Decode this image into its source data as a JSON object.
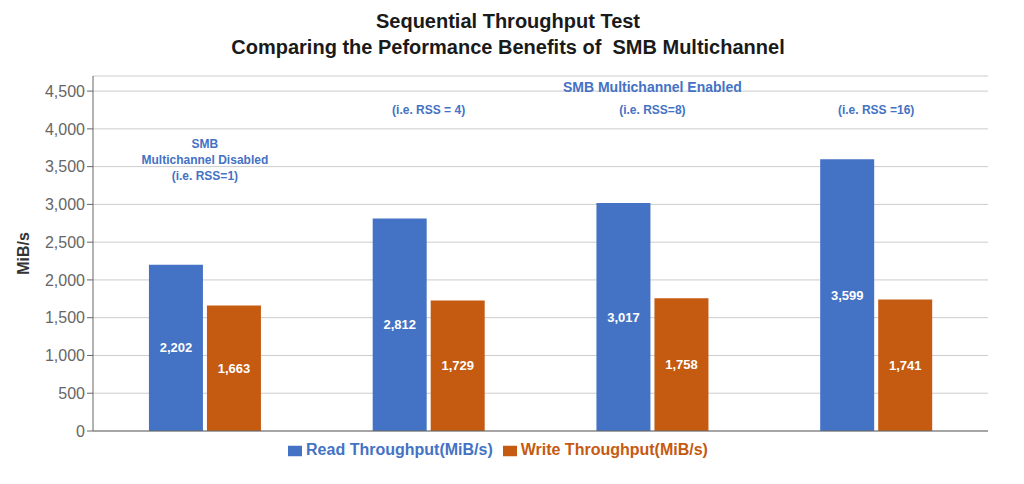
{
  "chart_data": {
    "type": "bar",
    "title": "Sequential Throughput Test",
    "subtitle": "Comparing the Peformance Benefits of  SMB Multichannel",
    "categories": [
      null,
      null,
      null,
      null
    ],
    "series": [
      {
        "name": "Read Throughput(MiB/s)",
        "color": "#4472C4",
        "values": [
          2202,
          2812,
          3017,
          3599
        ],
        "value_labels": [
          "2,202",
          "2,812",
          "3,017",
          "3,599"
        ]
      },
      {
        "name": "Write Throughput(MiB/s)",
        "color": "#C55A11",
        "values": [
          1663,
          1729,
          1758,
          1741
        ],
        "value_labels": [
          "1,663",
          "1,729",
          "1,758",
          "1,741"
        ]
      }
    ],
    "ylabel": "MiB/s",
    "ylim": [
      0,
      4700
    ],
    "yticks": [
      0,
      500,
      {
        "value": 1000,
        "label": "1,000"
      },
      {
        "value": 1500,
        "label": "1,500"
      },
      {
        "value": 2000,
        "label": "2,000"
      },
      {
        "value": 2500,
        "label": "2,500"
      },
      {
        "value": 3000,
        "label": "3,000"
      },
      {
        "value": 3500,
        "label": "3,500"
      },
      {
        "value": 4000,
        "label": "4,000"
      },
      {
        "value": 4500,
        "label": "4,500"
      }
    ],
    "grid": true,
    "legend": "bottom",
    "data_labels": true,
    "tick_labels": "y",
    "annotations": [
      {
        "text": "SMB\nMultichannel Disabled\n(i.e. RSS=1)",
        "color": "#4472C4"
      },
      {
        "text": "SMB Multichannel Enabled",
        "color": "#4472C4"
      },
      {
        "text": "(i.e. RSS = 4)",
        "color": "#4472C4"
      },
      {
        "text": "(i.e. RSS=8)",
        "color": "#4472C4"
      },
      {
        "text": "(i.e. RSS =16)",
        "color": "#4472C4"
      }
    ]
  }
}
